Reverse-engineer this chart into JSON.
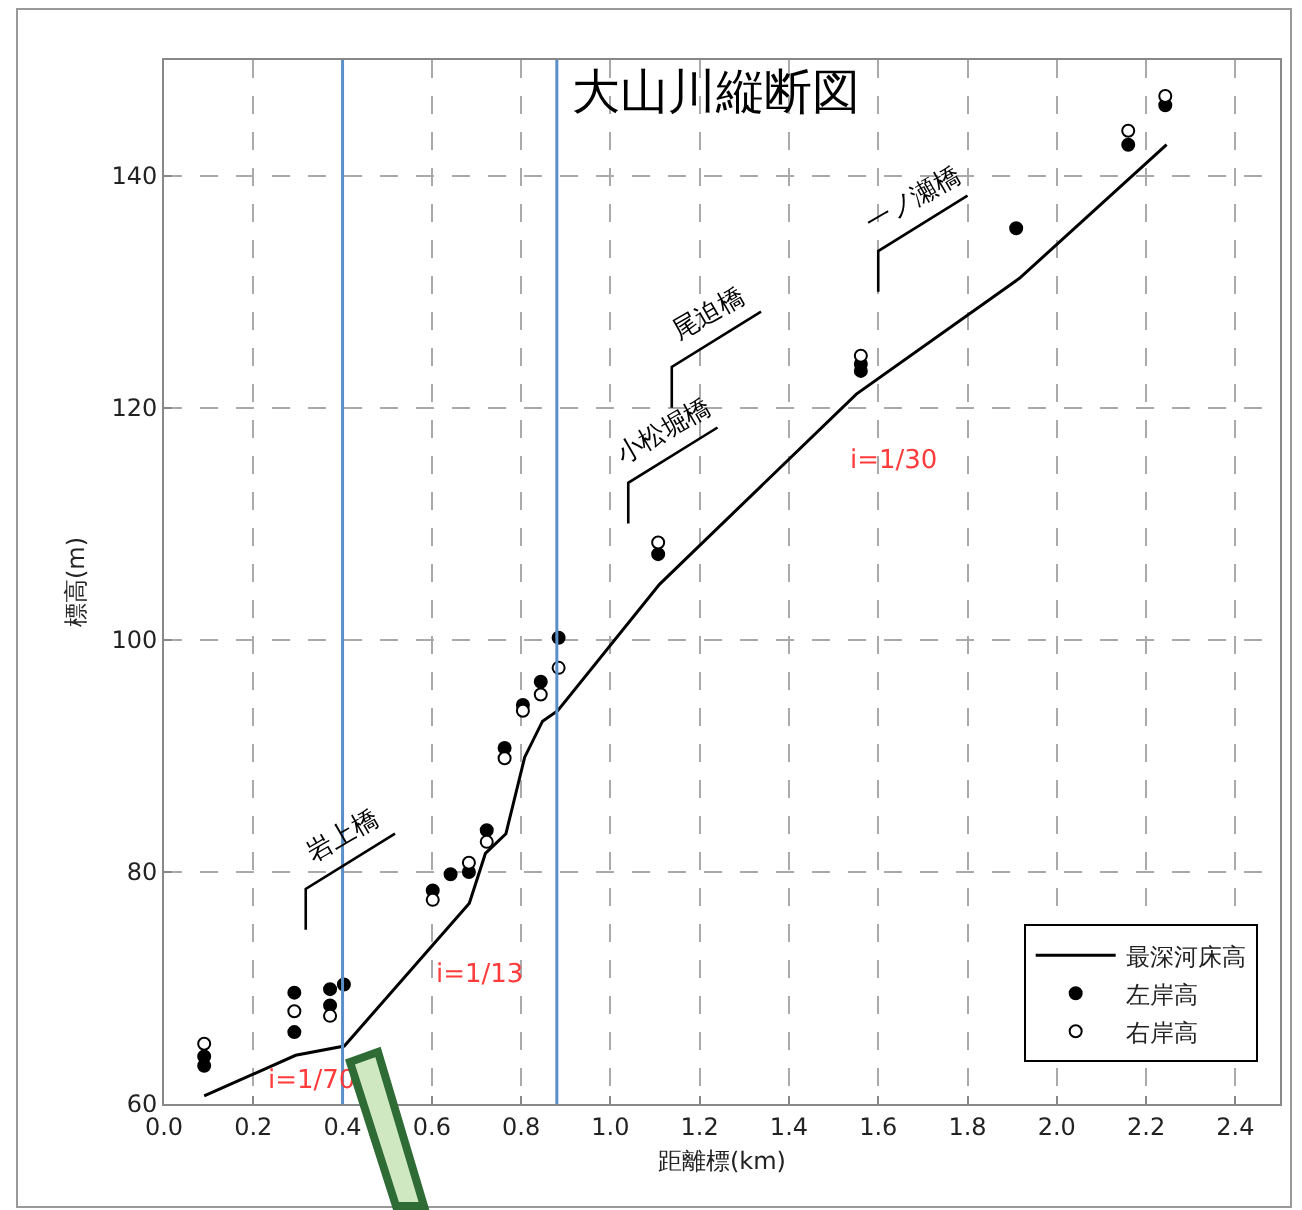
{
  "chart_data": {
    "type": "scatter",
    "title": "大山川縦断図",
    "xlabel": "距離標(km)",
    "ylabel": "標高(m)",
    "xlim": [
      0,
      2.5
    ],
    "xticks": [
      {
        "value": 0,
        "label": "0.0"
      },
      0.2,
      0.4,
      0.6,
      0.8,
      {
        "value": 1,
        "label": "1.0"
      },
      1.2,
      1.4,
      1.6,
      1.8,
      {
        "value": 2,
        "label": "2.0"
      },
      2.2,
      2.4
    ],
    "ylim": [
      60,
      150
    ],
    "yticks": [
      60,
      80,
      100,
      120,
      140
    ],
    "grid": true,
    "legend": "bottom right",
    "series": [
      {
        "name": "最深河床高",
        "type": "line",
        "color": "#000000",
        "marker": "none",
        "line_style": "solid",
        "x": [
          0.09,
          0.295,
          0.404,
          0.684,
          0.72,
          0.766,
          0.808,
          0.848,
          0.882,
          1.11,
          1.551,
          1.917,
          2.246
        ],
        "values": [
          60.7,
          64.2,
          65.0,
          77.3,
          81.6,
          83.3,
          89.9,
          93.0,
          93.9,
          104.8,
          121.2,
          131.2,
          142.7
        ]
      },
      {
        "name": "左岸高",
        "type": "scatter",
        "color": "#000000",
        "marker": "circle",
        "x": [
          0.09,
          0.09,
          0.292,
          0.292,
          0.372,
          0.372,
          0.403,
          0.602,
          0.642,
          0.683,
          0.723,
          0.763,
          0.804,
          0.844,
          0.884,
          1.107,
          1.561,
          1.561,
          1.909,
          2.16,
          2.243
        ],
        "values": [
          64.1,
          63.3,
          69.6,
          66.2,
          69.9,
          68.5,
          70.3,
          78.4,
          79.8,
          80.0,
          83.6,
          90.7,
          94.4,
          96.4,
          100.2,
          107.4,
          123.2,
          123.8,
          135.5,
          142.7,
          146.1
        ]
      },
      {
        "name": "右岸高",
        "type": "scatter",
        "color": "#ffffff",
        "marker": "circle",
        "x": [
          0.09,
          0.292,
          0.372,
          0.602,
          0.683,
          0.723,
          0.763,
          0.804,
          0.844,
          0.884,
          1.107,
          1.561,
          2.16,
          2.243
        ],
        "values": [
          65.2,
          68.0,
          67.6,
          77.6,
          80.8,
          82.6,
          89.8,
          93.9,
          95.3,
          97.6,
          108.4,
          124.5,
          143.9,
          146.9
        ]
      }
    ],
    "ref_lines": [
      {
        "axis": "x",
        "value": 0.4,
        "color": "#5b8fc7"
      },
      {
        "axis": "x",
        "value": 0.88,
        "color": "#5b8fc7"
      }
    ],
    "annotations": [
      "i=1/70",
      "i=1/13",
      "i=1/30",
      "岩上橋",
      "小松堀橋",
      "尾迫橋",
      "一ノ瀬橋"
    ]
  }
}
